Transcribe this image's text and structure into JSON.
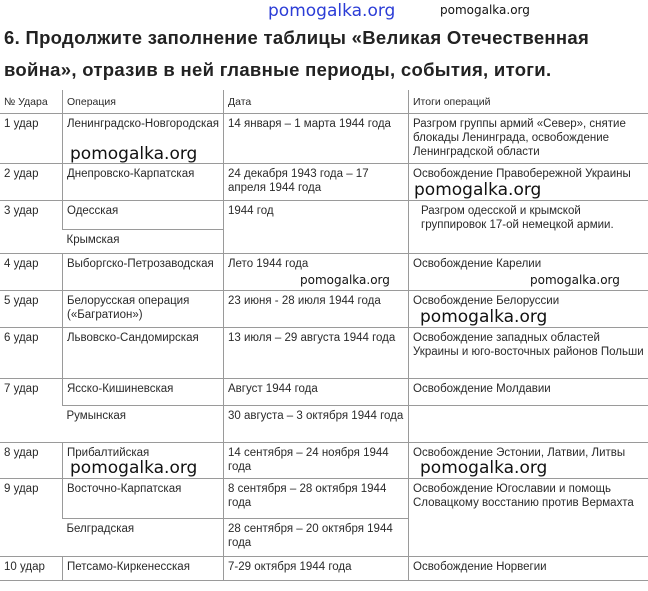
{
  "watermark": "pomogalka.org",
  "title": "6. Продолжите заполнение таблицы «Великая Отечественная война», отразив в ней главные периоды, события, итоги.",
  "table": {
    "headers": [
      "№ Удара",
      "Операция",
      "Дата",
      "Итоги операций"
    ],
    "rows": [
      {
        "n": "1 удар",
        "op": "Ленинградско-Новгородская",
        "date": "14 января – 1 марта 1944 года",
        "result": "Разгром группы армий «Север», снятие блокады Ленинграда, освобождение Ленинградской области"
      },
      {
        "n": "2 удар",
        "op": "Днепровско-Карпатская",
        "date": "24 декабря 1943 года – 17 апреля 1944 года",
        "result": "Освобождение Правобережной Украины"
      },
      {
        "n": "3 удар",
        "op": "Одесская",
        "op2": "Крымская",
        "date": "1944 год",
        "result": "Разгром одесской и крымской группировок 17-ой немецкой армии."
      },
      {
        "n": "4 удар",
        "op": "Выборгско-Петрозаводская",
        "date": "Лето 1944 года",
        "result": "Освобождение Карелии"
      },
      {
        "n": "5 удар",
        "op": "Белорусская операция («Багратион»)",
        "date": "23 июня - 28 июля 1944 года",
        "result": "Освобождение Белоруссии"
      },
      {
        "n": "6 удар",
        "op": "Львовско-Сандомирская",
        "date": "13 июля – 29 августа 1944 года",
        "result": "Освобождение западных областей Украины и юго-восточных районов Польши"
      },
      {
        "n": "7 удар",
        "op": "Ясско-Кишиневская",
        "date": "Август 1944 года",
        "result": "Освобождение Молдавии",
        "op2": "Румынская",
        "date2": "30 августа – 3 октября 1944 года"
      },
      {
        "n": "8 удар",
        "op": "Прибалтийская",
        "date": "14 сентября – 24 ноября 1944 года",
        "result": "Освобождение Эстонии, Латвии, Литвы"
      },
      {
        "n": "9 удар",
        "op": "Восточно-Карпатская",
        "date": "8 сентября – 28 октября 1944 года",
        "result": "Освобождение Югославии и помощь Словацкому восстанию против Вермахта",
        "op2": "Белградская",
        "date2": "28 сентября – 20 октября 1944 года"
      },
      {
        "n": "10 удар",
        "op": "Петсамо-Киркенесская",
        "date": "7-29 октября 1944 года",
        "result": "Освобождение Норвегии"
      }
    ]
  }
}
